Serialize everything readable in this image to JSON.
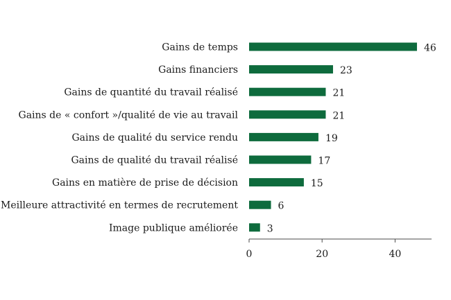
{
  "chart_data": {
    "type": "bar",
    "orientation": "horizontal",
    "categories": [
      "Gains de temps",
      "Gains financiers",
      "Gains de quantité du travail réalisé",
      "Gains de « confort »/qualité de vie au travail",
      "Gains de qualité du service rendu",
      "Gains de qualité du travail réalisé",
      "Gains en matière de prise de décision",
      "Meilleure attractivité en termes de recrutement",
      "Image publique améliorée"
    ],
    "values": [
      46,
      23,
      21,
      21,
      19,
      17,
      15,
      6,
      3
    ],
    "xlim": [
      0,
      50
    ],
    "xticks": [
      0,
      20,
      40
    ],
    "grid": false,
    "legend": "none",
    "bar_color": "#0e6b3d"
  }
}
